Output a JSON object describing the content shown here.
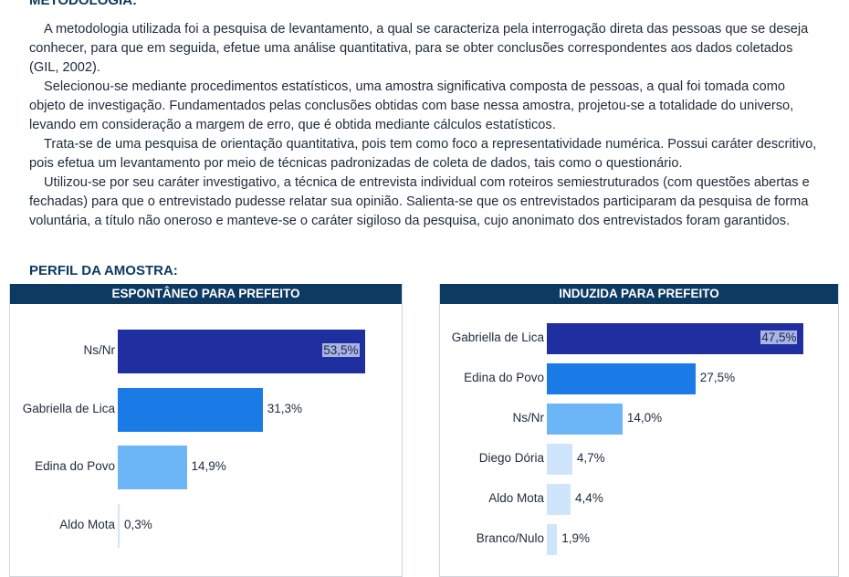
{
  "title": "METODOLOGIA:",
  "paragraphs": [
    "A metodologia utilizada foi a pesquisa de levantamento, a qual se caracteriza pela interrogação direta das pessoas que se deseja conhecer, para que em seguida, efetue uma análise quantitativa, para se obter conclusões correspondentes aos dados coletados (GIL, 2002).",
    "Selecionou-se mediante procedimentos estatísticos, uma amostra significativa composta de  pessoas, a qual foi tomada como objeto de investigação. Fundamentados pelas conclusões obtidas com base nessa amostra, projetou-se a totalidade do universo, levando em consideração a margem de erro, que é obtida mediante cálculos estatísticos.",
    "Trata-se de uma pesquisa de orientação quantitativa, pois tem como foco a representatividade numérica. Possui caráter descritivo, pois efetua um levantamento por meio de técnicas padronizadas de coleta de dados, tais como o questionário.",
    "Utilizou-se por seu caráter investigativo, a técnica de entrevista individual com roteiros semiestruturados (com questões abertas e fechadas) para que o entrevistado pudesse relatar sua opinião. Salienta-se que os entrevistados participaram da pesquisa de forma voluntária, a título não oneroso e manteve-se o caráter sigiloso da pesquisa, cujo anonimato dos entrevistados foram garantidos."
  ],
  "subtitle": "PERFIL DA AMOSTRA:",
  "colors": {
    "header": "#0d3a63",
    "bar1": "#1f2fa0",
    "bar2": "#1a7ae6",
    "bar3": "#6cb6f7",
    "bar4": "#cfe5fb"
  },
  "chart_data": [
    {
      "type": "bar",
      "orientation": "horizontal",
      "title": "ESPONTÂNEO PARA PREFEITO",
      "categories": [
        "Ns/Nr",
        "Gabriella de Lica",
        "Edina do Povo",
        "Aldo Mota"
      ],
      "values": [
        53.5,
        31.3,
        14.9,
        0.3
      ],
      "labels": [
        "53,5%",
        "31,3%",
        "14,9%",
        "0,3%"
      ]
    },
    {
      "type": "bar",
      "orientation": "horizontal",
      "title": "INDUZIDA PARA PREFEITO",
      "categories": [
        "Gabriella de Lica",
        "Edina do Povo",
        "Ns/Nr",
        "Diego Dória",
        "Aldo Mota",
        "Branco/Nulo"
      ],
      "values": [
        47.5,
        27.5,
        14.0,
        4.7,
        4.4,
        1.9
      ],
      "labels": [
        "47,5%",
        "27,5%",
        "14,0%",
        "4,7%",
        "4,4%",
        "1,9%"
      ]
    }
  ]
}
